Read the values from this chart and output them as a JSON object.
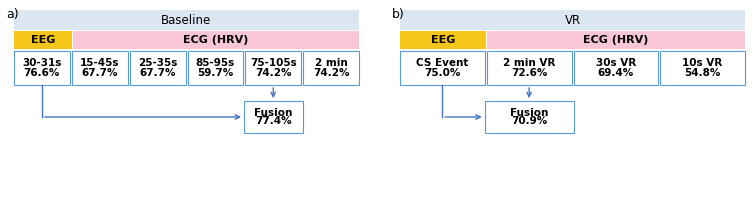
{
  "panel_a": {
    "label": "a)",
    "title": "Baseline",
    "title_color": "#dce6f1",
    "eeg_label": "EEG",
    "eeg_color": "#f5c518",
    "ecg_label": "ECG (HRV)",
    "ecg_color": "#f9c6d8",
    "boxes": [
      {
        "line1": "30-31s",
        "line2": "76.6%"
      },
      {
        "line1": "15-45s",
        "line2": "67.7%"
      },
      {
        "line1": "25-35s",
        "line2": "67.7%"
      },
      {
        "line1": "85-95s",
        "line2": "59.7%"
      },
      {
        "line1": "75-105s",
        "line2": "74.2%"
      },
      {
        "line1": "2 min",
        "line2": "74.2%"
      }
    ],
    "fusion": {
      "line1": "Fusion",
      "line2": "77.4%"
    }
  },
  "panel_b": {
    "label": "b)",
    "title": "VR",
    "title_color": "#dce6f1",
    "eeg_label": "EEG",
    "eeg_color": "#f5c518",
    "ecg_label": "ECG (HRV)",
    "ecg_color": "#f9c6d8",
    "boxes": [
      {
        "line1": "CS Event",
        "line2": "75.0%"
      },
      {
        "line1": "2 min VR",
        "line2": "72.6%"
      },
      {
        "line1": "30s VR",
        "line2": "69.4%"
      },
      {
        "line1": "10s VR",
        "line2": "54.8%"
      }
    ],
    "fusion": {
      "line1": "Fusion",
      "line2": "70.9%"
    }
  },
  "arrow_color": "#4472c4",
  "box_edge_color": "#5b9bd5",
  "bg_color": "#ffffff",
  "font_size_label_ab": 9,
  "font_size_title": 8.5,
  "font_size_bar": 8,
  "font_size_box": 7.5
}
